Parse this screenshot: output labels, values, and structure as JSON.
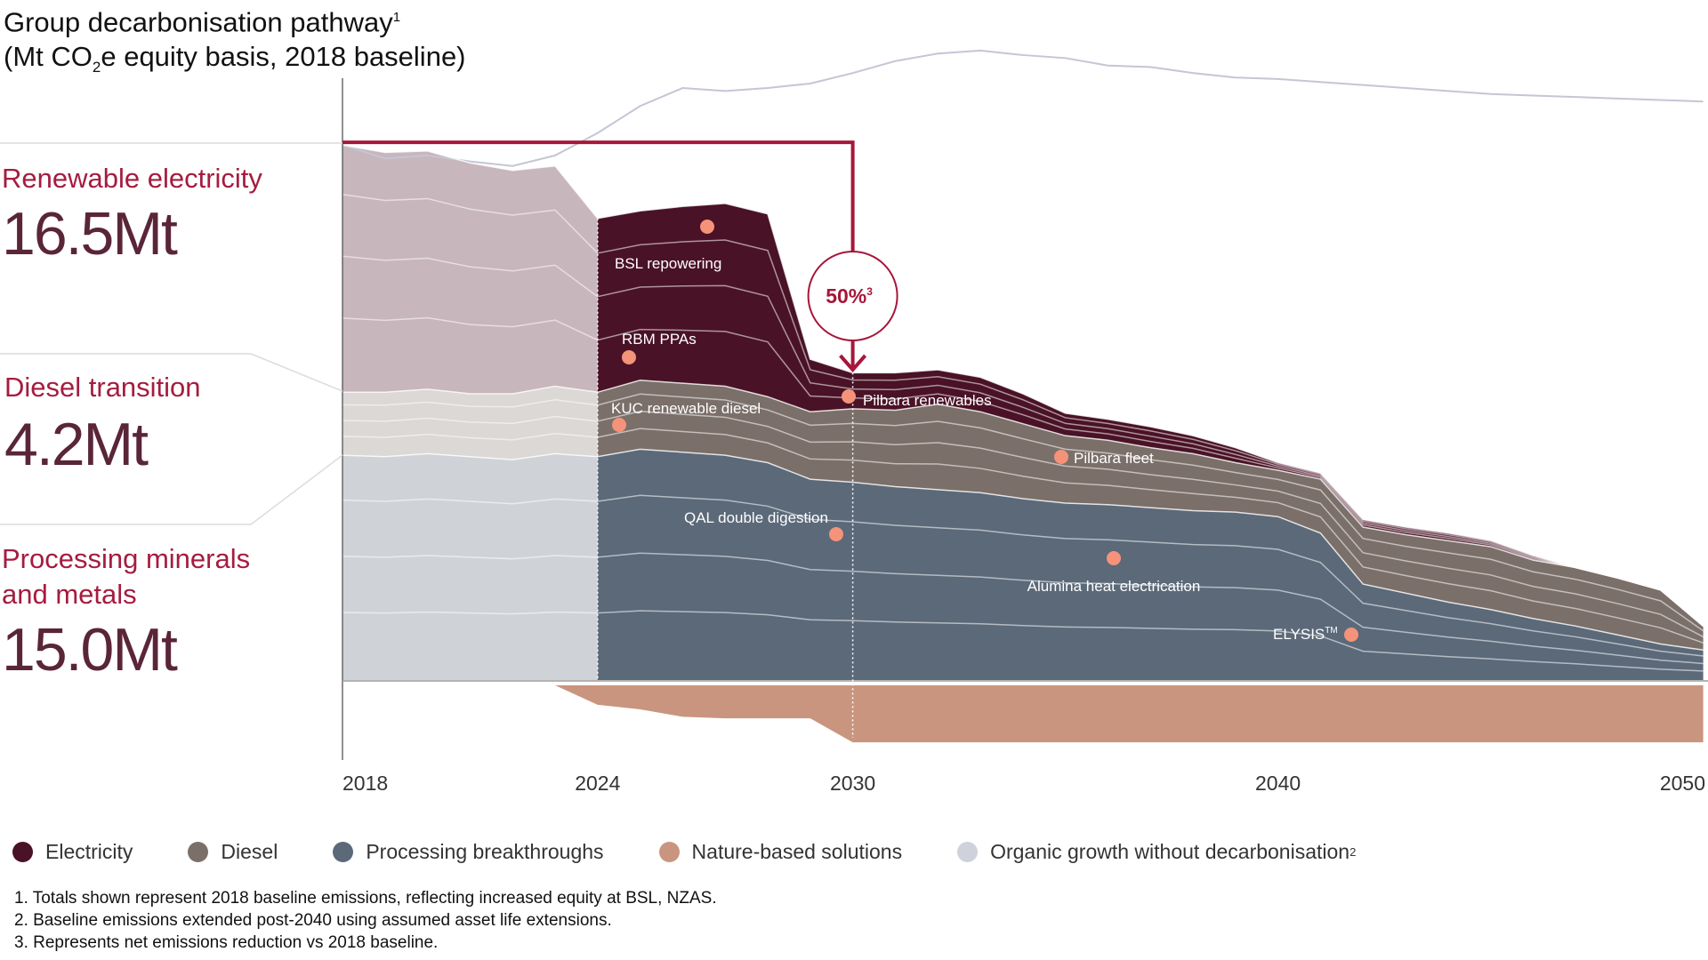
{
  "title": {
    "line1": "Group decarbonisation pathway",
    "line1_sup": "1",
    "line2_a": "(Mt CO",
    "line2_sub": "2",
    "line2_b": "e equity basis, 2018 baseline)"
  },
  "side_panels": [
    {
      "label": "Renewable electricity",
      "value": "16.5Mt"
    },
    {
      "label": "Diesel transition",
      "value": "4.2Mt"
    },
    {
      "label": "Processing minerals",
      "label2": "and metals",
      "value": "15.0Mt"
    }
  ],
  "target": {
    "label": "50%",
    "sup": "3"
  },
  "legend": [
    {
      "label": "Electricity",
      "color": "#4a1226"
    },
    {
      "label": "Diesel",
      "color": "#7b6f69"
    },
    {
      "label": "Processing breakthroughs",
      "color": "#5b6979"
    },
    {
      "label": "Nature-based solutions",
      "color": "#c9957f"
    },
    {
      "label": "Organic growth without decarbonisation",
      "sup": "2",
      "color": "#cfd2da"
    }
  ],
  "footnotes": [
    "1. Totals shown represent 2018 baseline emissions, reflecting increased equity at BSL, NZAS.",
    "2. Baseline emissions extended post-2040 using assumed asset life extensions.",
    "3. Represents net emissions reduction vs 2018 baseline."
  ],
  "annotations": [
    {
      "label": "BSL repowering"
    },
    {
      "label": "RBM PPAs"
    },
    {
      "label": "KUC renewable diesel"
    },
    {
      "label": "Pilbara renewables"
    },
    {
      "label": "Pilbara fleet"
    },
    {
      "label": "QAL double digestion"
    },
    {
      "label": "Alumina heat electrication"
    },
    {
      "label": "ELYSIS",
      "sup": "TM"
    }
  ],
  "chart_data": {
    "type": "area",
    "title": "Group decarbonisation pathway (Mt CO2e equity basis, 2018 baseline)",
    "xlabel": "",
    "ylabel": "Mt CO2e",
    "x_ticks": [
      "2018",
      "2024",
      "2030",
      "2040",
      "2050"
    ],
    "xlim": [
      2018,
      2050
    ],
    "years": [
      2018,
      2019,
      2020,
      2021,
      2022,
      2023,
      2024,
      2025,
      2026,
      2027,
      2028,
      2029,
      2030,
      2031,
      2032,
      2033,
      2034,
      2035,
      2036,
      2037,
      2038,
      2039,
      2040,
      2041,
      2042,
      2043,
      2044,
      2045,
      2046,
      2047,
      2048,
      2049,
      2050
    ],
    "stacked": true,
    "series": [
      {
        "name": "Processing breakthroughs",
        "color": "#5b6979",
        "faded_color": "#cfd3d8",
        "values": [
          15.0,
          14.9,
          15.1,
          14.9,
          14.7,
          15.1,
          14.9,
          15.4,
          15.2,
          15.0,
          14.5,
          13.4,
          13.2,
          12.9,
          12.7,
          12.5,
          12.1,
          11.8,
          11.7,
          11.5,
          11.3,
          11.2,
          10.9,
          9.8,
          6.4,
          5.8,
          5.2,
          4.7,
          4.1,
          3.6,
          3.0,
          2.4,
          2.0
        ]
      },
      {
        "name": "Diesel",
        "color": "#7b6f69",
        "faded_color": "#dbd8d5",
        "values": [
          4.2,
          4.3,
          4.3,
          4.2,
          4.4,
          4.5,
          4.3,
          4.6,
          4.6,
          4.6,
          4.4,
          4.5,
          4.9,
          5.1,
          5.7,
          5.4,
          5.0,
          4.5,
          4.3,
          4.0,
          3.8,
          3.3,
          3.1,
          3.6,
          3.8,
          3.9,
          4.1,
          4.2,
          3.9,
          3.9,
          3.8,
          3.6,
          1.6
        ]
      },
      {
        "name": "Electricity",
        "color": "#4a1226",
        "faded_color": "#c8b6bd",
        "values": [
          16.5,
          16.0,
          15.9,
          15.4,
          14.9,
          14.7,
          11.6,
          11.3,
          11.8,
          12.2,
          12.2,
          3.5,
          2.4,
          2.5,
          2.3,
          2.3,
          2.0,
          1.5,
          1.4,
          1.4,
          1.2,
          1.0,
          0.5,
          0.4,
          0.5,
          0.5,
          0.5,
          0.4,
          0.3,
          0.0,
          0.0,
          0.0,
          0.0
        ]
      },
      {
        "name": "Nature-based solutions",
        "color": "#c9957f",
        "values": [
          0,
          0,
          0,
          0,
          0,
          0,
          -1.3,
          -1.6,
          -2.1,
          -2.2,
          -2.2,
          -2.2,
          -3.8,
          -3.8,
          -3.8,
          -3.8,
          -3.8,
          -3.8,
          -3.8,
          -3.8,
          -3.8,
          -3.8,
          -3.8,
          -3.8,
          -3.8,
          -3.8,
          -3.8,
          -3.8,
          -3.8,
          -3.8,
          -3.8,
          -3.8,
          -3.8
        ]
      },
      {
        "name": "Organic growth without decarbonisation",
        "color": "#c4c6d4",
        "kind": "line",
        "values": [
          35.7,
          34.8,
          35.0,
          34.6,
          34.3,
          35.0,
          36.5,
          38.3,
          39.5,
          39.3,
          39.5,
          39.8,
          40.5,
          41.3,
          41.8,
          42.0,
          41.7,
          41.5,
          41.0,
          40.9,
          40.5,
          40.2,
          40.1,
          39.9,
          39.7,
          39.5,
          39.3,
          39.1,
          39.0,
          38.9,
          38.8,
          38.7,
          38.6
        ]
      }
    ],
    "baseline_2018": 35.7,
    "reduction_2030_pct": 50,
    "ylim": [
      -4,
      43
    ]
  }
}
